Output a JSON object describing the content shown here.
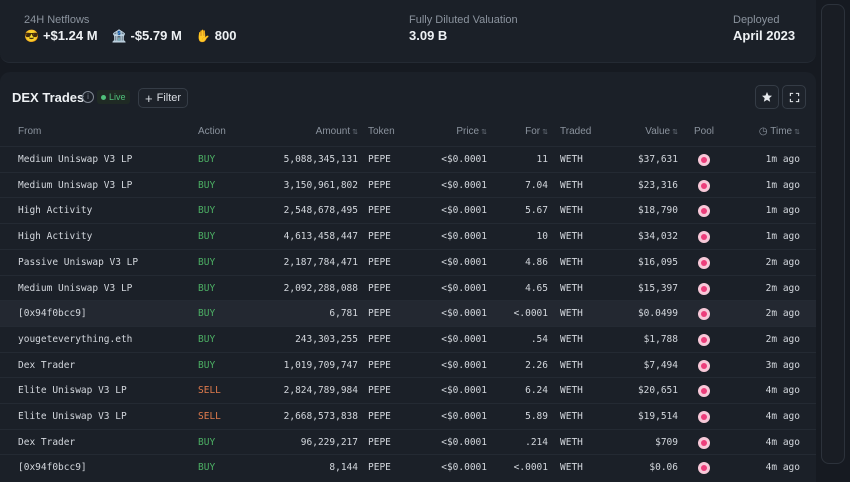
{
  "header": {
    "netflows_label": "24H Netflows",
    "flows": [
      {
        "icon": "smiley-emoji-icon",
        "glyph": "😎",
        "value": "+$1.24 M"
      },
      {
        "icon": "bank-emoji-icon",
        "glyph": "🏦",
        "value": "-$5.79 M"
      },
      {
        "icon": "hand-emoji-icon",
        "glyph": "✋",
        "value": "800"
      }
    ],
    "fdv_label": "Fully Diluted Valuation",
    "fdv_value": "3.09 B",
    "deployed_label": "Deployed",
    "deployed_value": "April 2023"
  },
  "panel": {
    "title": "DEX Trades",
    "live": "Live",
    "filter": "Filter"
  },
  "columns": {
    "from": "From",
    "action": "Action",
    "amount": "Amount",
    "token": "Token",
    "price": "Price",
    "for": "For",
    "traded": "Traded",
    "value": "Value",
    "pool": "Pool",
    "time": "Time"
  },
  "rows": [
    {
      "from": "Medium Uniswap V3 LP",
      "action": "BUY",
      "amount": "5,088,345,131",
      "token": "PEPE",
      "price": "<$0.0001",
      "for": "11",
      "traded": "WETH",
      "value": "$37,631",
      "time": "1m ago"
    },
    {
      "from": "Medium Uniswap V3 LP",
      "action": "BUY",
      "amount": "3,150,961,802",
      "token": "PEPE",
      "price": "<$0.0001",
      "for": "7.04",
      "traded": "WETH",
      "value": "$23,316",
      "time": "1m ago"
    },
    {
      "from": "High Activity",
      "action": "BUY",
      "amount": "2,548,678,495",
      "token": "PEPE",
      "price": "<$0.0001",
      "for": "5.67",
      "traded": "WETH",
      "value": "$18,790",
      "time": "1m ago"
    },
    {
      "from": "High Activity",
      "action": "BUY",
      "amount": "4,613,458,447",
      "token": "PEPE",
      "price": "<$0.0001",
      "for": "10",
      "traded": "WETH",
      "value": "$34,032",
      "time": "1m ago"
    },
    {
      "from": "Passive Uniswap V3 LP",
      "action": "BUY",
      "amount": "2,187,784,471",
      "token": "PEPE",
      "price": "<$0.0001",
      "for": "4.86",
      "traded": "WETH",
      "value": "$16,095",
      "time": "2m ago"
    },
    {
      "from": "Medium Uniswap V3 LP",
      "action": "BUY",
      "amount": "2,092,288,088",
      "token": "PEPE",
      "price": "<$0.0001",
      "for": "4.65",
      "traded": "WETH",
      "value": "$15,397",
      "time": "2m ago"
    },
    {
      "from": "[0x94f0bcc9]",
      "action": "BUY",
      "amount": "6,781",
      "token": "PEPE",
      "price": "<$0.0001",
      "for": "<.0001",
      "traded": "WETH",
      "value": "$0.0499",
      "time": "2m ago"
    },
    {
      "from": "yougeteverything.eth",
      "action": "BUY",
      "amount": "243,303,255",
      "token": "PEPE",
      "price": "<$0.0001",
      "for": ".54",
      "traded": "WETH",
      "value": "$1,788",
      "time": "2m ago"
    },
    {
      "from": "Dex Trader",
      "action": "BUY",
      "amount": "1,019,709,747",
      "token": "PEPE",
      "price": "<$0.0001",
      "for": "2.26",
      "traded": "WETH",
      "value": "$7,494",
      "time": "3m ago"
    },
    {
      "from": "Elite Uniswap V3 LP",
      "action": "SELL",
      "amount": "2,824,789,984",
      "token": "PEPE",
      "price": "<$0.0001",
      "for": "6.24",
      "traded": "WETH",
      "value": "$20,651",
      "time": "4m ago"
    },
    {
      "from": "Elite Uniswap V3 LP",
      "action": "SELL",
      "amount": "2,668,573,838",
      "token": "PEPE",
      "price": "<$0.0001",
      "for": "5.89",
      "traded": "WETH",
      "value": "$19,514",
      "time": "4m ago"
    },
    {
      "from": "Dex Trader",
      "action": "BUY",
      "amount": "96,229,217",
      "token": "PEPE",
      "price": "<$0.0001",
      "for": ".214",
      "traded": "WETH",
      "value": "$709",
      "time": "4m ago"
    },
    {
      "from": "[0x94f0bcc9]",
      "action": "BUY",
      "amount": "8,144",
      "token": "PEPE",
      "price": "<$0.0001",
      "for": "<.0001",
      "traded": "WETH",
      "value": "$0.06",
      "time": "4m ago"
    }
  ],
  "highlighted_row": 6,
  "colors": {
    "buy": "#4caf64",
    "sell": "#e07b4d",
    "live": "#4fc27a",
    "background": "#161a21",
    "panel": "#1b2028"
  }
}
